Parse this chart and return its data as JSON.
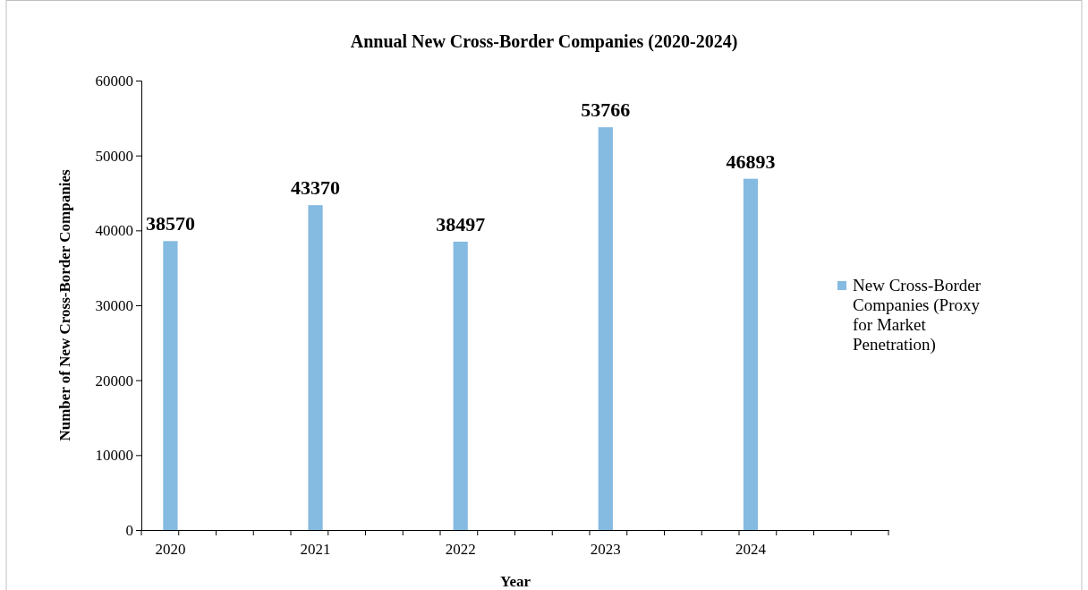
{
  "chart_data": {
    "type": "bar",
    "title": "Annual New Cross-Border Companies (2020-2024)",
    "xlabel": "Year",
    "ylabel": "Number of New Cross-Border Companies",
    "categories": [
      "2020",
      null,
      null,
      null,
      "2021",
      null,
      null,
      null,
      "2022",
      null,
      null,
      null,
      "2023",
      null,
      null,
      null,
      "2024",
      null,
      null,
      null
    ],
    "series": [
      {
        "name": "New Cross-Border Companies (Proxy for Market Penetration)",
        "color": "#85bae1",
        "values": [
          38570,
          null,
          null,
          null,
          43370,
          null,
          null,
          null,
          38497,
          null,
          null,
          null,
          53766,
          null,
          null,
          null,
          46893,
          null,
          null,
          null
        ]
      }
    ],
    "data_labels": true,
    "ylim": [
      0,
      60000
    ],
    "yticks": [
      0,
      10000,
      20000,
      30000,
      40000,
      50000,
      60000
    ],
    "grid": false,
    "legend": "right"
  }
}
